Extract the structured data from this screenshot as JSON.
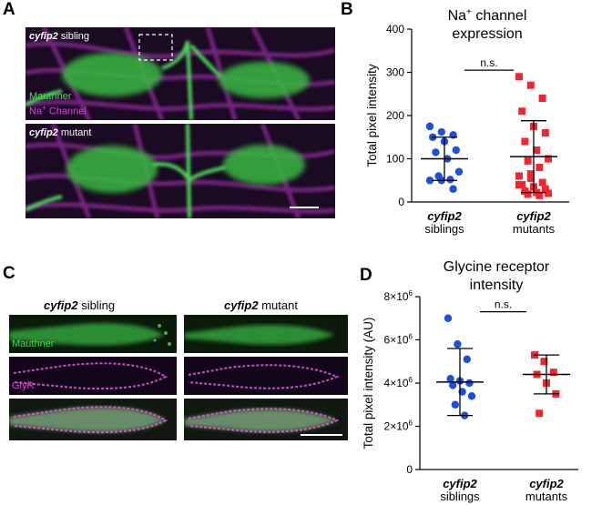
{
  "panels": {
    "A": {
      "letter": "A",
      "top": {
        "gene": "cyfip2",
        "label": " sibling"
      },
      "bottom": {
        "gene": "cyfip2",
        "label": " mutant"
      },
      "legend": {
        "line1": "Mauthner",
        "line2_pre": "Na",
        "line2_sup": "+",
        "line2_post": " Channel"
      }
    },
    "B": {
      "letter": "B"
    },
    "C": {
      "letter": "C",
      "col1": {
        "gene": "cyfip2",
        "label": " sibling"
      },
      "col2": {
        "gene": "cyfip2",
        "label": " mutant"
      },
      "row1_label": "Mauthner",
      "row2_label": "GlyR"
    },
    "D": {
      "letter": "D"
    }
  },
  "colors": {
    "siblings": "#1a4fe0",
    "mutants": "#f2262e",
    "green": "#3de04a",
    "magenta": "#e23ee6"
  },
  "chart_data": [
    {
      "type": "scatter",
      "title_pre": "Na",
      "title_sup": "+",
      "title_post": " channel",
      "title_line2": "expression",
      "ylabel": "Total pixel intensity",
      "ylim": [
        0,
        400
      ],
      "yticks": [
        "0",
        "100",
        "200",
        "300",
        "400"
      ],
      "categories": [
        {
          "line1": "cyfip2",
          "line2": "siblings"
        },
        {
          "line1": "cyfip2",
          "line2": "mutants"
        }
      ],
      "annotation": "n.s.",
      "series": [
        {
          "values": [
            175,
            162,
            155,
            150,
            140,
            120,
            115,
            100,
            70,
            60,
            52,
            50,
            50,
            30
          ],
          "mean": 100,
          "sd_low": 50,
          "sd_high": 150,
          "marker": "circle"
        },
        {
          "values": [
            290,
            270,
            240,
            210,
            175,
            160,
            140,
            120,
            100,
            95,
            80,
            60,
            55,
            45,
            40,
            35,
            30,
            25,
            22,
            20,
            18,
            15,
            40,
            65
          ],
          "mean": 105,
          "sd_low": 22,
          "sd_high": 188,
          "marker": "square"
        }
      ]
    },
    {
      "type": "scatter",
      "title_line1": "Glycine receptor",
      "title_line2": "intensity",
      "ylabel": "Total pixel intensity (AU)",
      "ylim": [
        0,
        8
      ],
      "yticks": [
        {
          "v": "0",
          "e": ""
        },
        {
          "v": "2×10",
          "e": "6"
        },
        {
          "v": "4×10",
          "e": "6"
        },
        {
          "v": "6×10",
          "e": "6"
        },
        {
          "v": "8×10",
          "e": "6"
        }
      ],
      "categories": [
        {
          "line1": "cyfip2",
          "line2": "siblings"
        },
        {
          "line1": "cyfip2",
          "line2": "mutants"
        }
      ],
      "annotation": "n.s.",
      "series": [
        {
          "values": [
            7.0,
            5.8,
            5.1,
            4.2,
            4.1,
            4.0,
            3.9,
            3.6,
            3.4,
            3.0,
            2.5
          ],
          "mean": 4.05,
          "sd_low": 2.5,
          "sd_high": 5.6,
          "marker": "circle"
        },
        {
          "values": [
            5.3,
            5.0,
            4.5,
            4.4,
            4.0,
            3.5,
            2.6
          ],
          "mean": 4.4,
          "sd_low": 3.5,
          "sd_high": 5.3,
          "marker": "square"
        }
      ]
    }
  ]
}
